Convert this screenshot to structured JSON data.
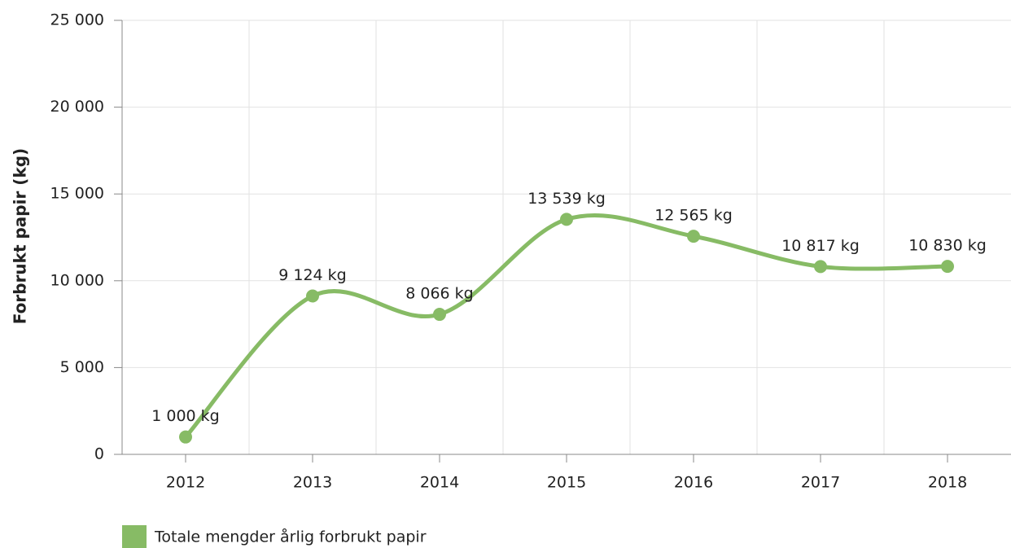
{
  "chart_data": {
    "type": "line",
    "categories": [
      "2012",
      "2013",
      "2014",
      "2015",
      "2016",
      "2017",
      "2018"
    ],
    "series": [
      {
        "name": "Totale mengder årlig forbrukt papir",
        "color": "#87bb65",
        "values": [
          1000,
          9124,
          8066,
          13539,
          12565,
          10817,
          10830
        ],
        "value_labels": [
          "1 000 kg",
          "9 124 kg",
          "8 066 kg",
          "13 539 kg",
          "12 565 kg",
          "10 817 kg",
          "10 830 kg"
        ]
      }
    ],
    "y_label": "Forbrukt papir (kg)",
    "ylim": [
      0,
      25000
    ],
    "yticks": [
      0,
      {
        "value": 5000,
        "label": "5 000"
      },
      {
        "value": 10000,
        "label": "10 000"
      },
      {
        "value": 15000,
        "label": "15 000"
      },
      {
        "value": 20000,
        "label": "20 000"
      },
      {
        "value": 25000,
        "label": "25 000"
      }
    ],
    "grid": true,
    "legend": "bottom-left"
  }
}
